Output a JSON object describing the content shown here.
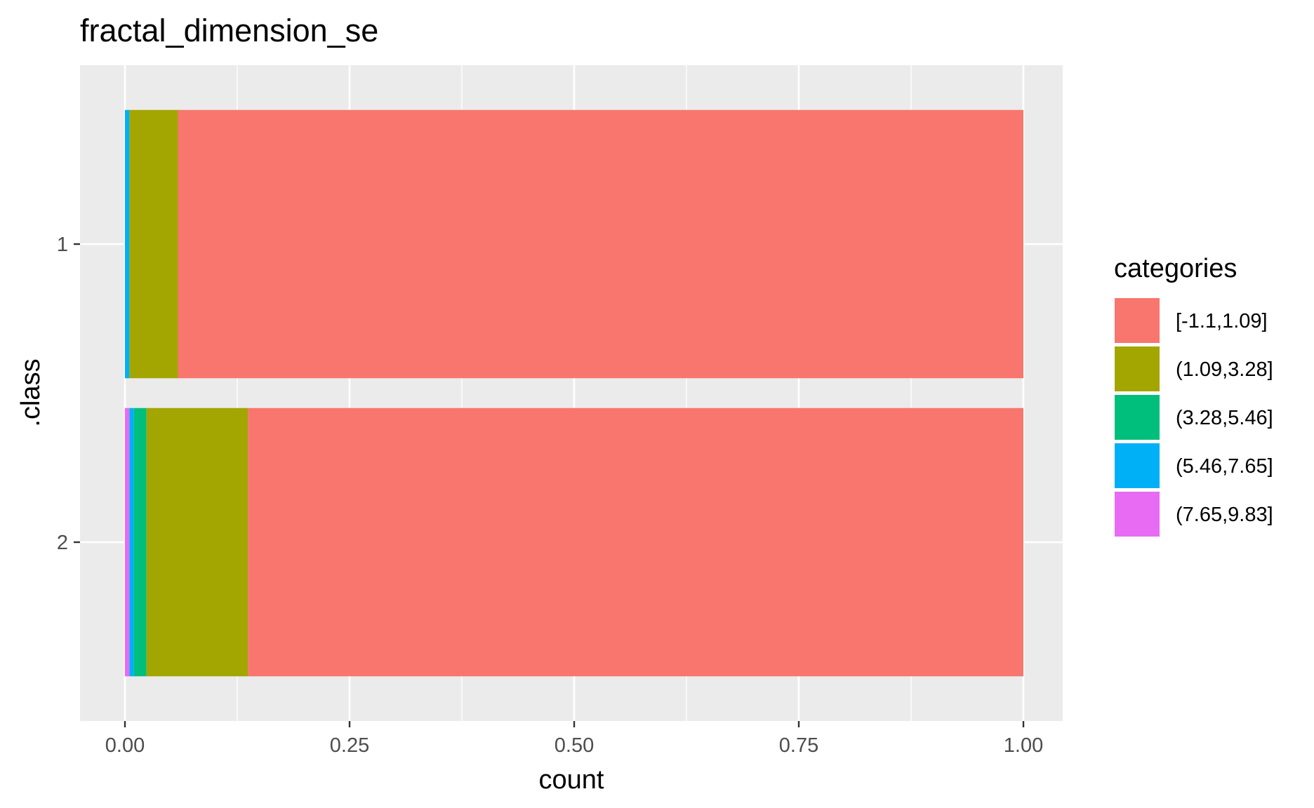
{
  "chart_data": {
    "type": "bar",
    "orientation": "horizontal",
    "stacked": true,
    "title": "fractal_dimension_se",
    "xlabel": "count",
    "ylabel": ".class",
    "xlim": [
      0,
      1
    ],
    "x_ticks": [
      "0.00",
      "0.25",
      "0.50",
      "0.75",
      "1.00"
    ],
    "categories": [
      "1",
      "2"
    ],
    "grid": true,
    "legend_title": "categories",
    "legend_position": "right",
    "series": [
      {
        "name": "[-1.1,1.09]",
        "color": "#F8766D",
        "values": [
          0.941,
          0.863
        ]
      },
      {
        "name": "(1.09,3.28]",
        "color": "#A3A500",
        "values": [
          0.054,
          0.113
        ]
      },
      {
        "name": "(3.28,5.46]",
        "color": "#00BF7D",
        "values": [
          0.0,
          0.014
        ]
      },
      {
        "name": "(5.46,7.65]",
        "color": "#00B0F6",
        "values": [
          0.005,
          0.005
        ]
      },
      {
        "name": "(7.65,9.83]",
        "color": "#E76BF3",
        "values": [
          0.0,
          0.005
        ]
      }
    ],
    "panel_background": "#EBEBEB",
    "grid_color": "#FFFFFF"
  }
}
